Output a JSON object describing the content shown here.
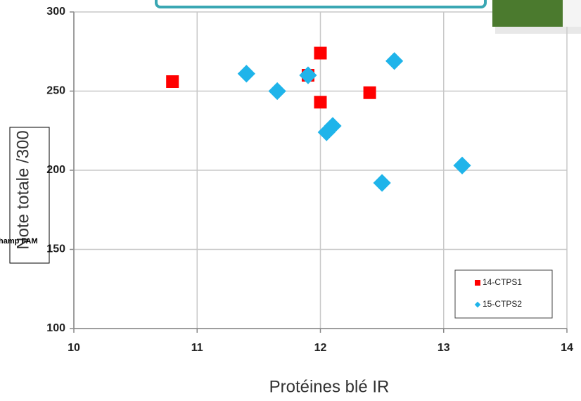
{
  "chart_data": {
    "type": "scatter",
    "xlabel": "Protéines blé IR",
    "ylabel": "Note totale /300",
    "xlim": [
      10,
      14
    ],
    "xticks": [
      10,
      11,
      12,
      13,
      14
    ],
    "ylim": [
      100,
      300
    ],
    "yticks": [
      100,
      150,
      200,
      250,
      300
    ],
    "grid": true,
    "legend": "lower right",
    "series": [
      {
        "name": "14-CTPS1",
        "color": "#ff0000",
        "marker": "square",
        "x": [
          10.8,
          11.9,
          12.0,
          12.0,
          12.4
        ],
        "values": [
          256,
          260,
          274,
          243,
          249
        ]
      },
      {
        "name": "15-CTPS2",
        "color": "#1fb4ea",
        "marker": "diamond",
        "x": [
          11.4,
          11.65,
          11.9,
          12.05,
          12.1,
          12.5,
          12.6,
          13.15
        ],
        "values": [
          261,
          250,
          260,
          224,
          228,
          192,
          269,
          203
        ]
      }
    ]
  },
  "overlay": {
    "label": "hamp FAM"
  }
}
